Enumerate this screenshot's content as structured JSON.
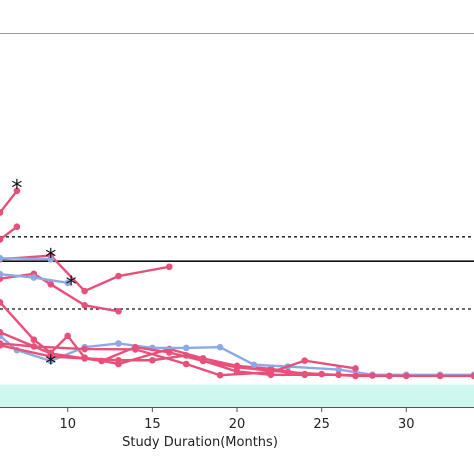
{
  "chart_data": {
    "type": "line",
    "xlabel": "Study Duration(Months)",
    "ylabel": "",
    "title": "",
    "xlim": [
      6,
      34
    ],
    "ylim": [
      0,
      100
    ],
    "x_ticks": [
      10,
      15,
      20,
      25,
      30
    ],
    "x_tick_labels": [
      "10",
      "15",
      "20",
      "25",
      "30"
    ],
    "grid": false,
    "colors": {
      "pink": "#e8507a",
      "blue": "#8ca9e6",
      "band": "#cdf7ef"
    },
    "shaded_band": {
      "y_from": 0,
      "y_to": 6
    },
    "reference_lines": [
      {
        "y": 45.5,
        "style": "dashed"
      },
      {
        "y": 39.0,
        "style": "solid"
      },
      {
        "y": 26.2,
        "style": "dashed"
      }
    ],
    "series": [
      {
        "color": "pink",
        "x": [
          6,
          7
        ],
        "y": [
          52.0,
          57.8
        ]
      },
      {
        "color": "pink",
        "x": [
          6,
          7
        ],
        "y": [
          44.8,
          48.2
        ]
      },
      {
        "color": "pink",
        "x": [
          6,
          9,
          11,
          13,
          16
        ],
        "y": [
          39.5,
          40.5,
          31.0,
          35.0,
          37.5
        ]
      },
      {
        "color": "pink",
        "x": [
          6,
          8,
          9,
          11,
          13
        ],
        "y": [
          34.3,
          35.6,
          32.8,
          27.2,
          25.6
        ]
      },
      {
        "color": "blue",
        "x": [
          6,
          9
        ],
        "y": [
          39.8,
          39.5
        ]
      },
      {
        "color": "blue",
        "x": [
          6,
          8,
          10
        ],
        "y": [
          35.5,
          34.6,
          33.2
        ]
      },
      {
        "color": "pink",
        "x": [
          6,
          8,
          9,
          10,
          11,
          13,
          16,
          18,
          20,
          22,
          24
        ],
        "y": [
          28.0,
          18.0,
          14.5,
          19.0,
          13.2,
          11.5,
          15.5,
          13.0,
          11.0,
          10.2,
          8.8
        ]
      },
      {
        "color": "blue",
        "x": [
          6,
          7,
          9,
          11,
          13,
          15,
          17,
          19,
          21,
          23,
          26,
          28,
          30,
          32,
          34
        ],
        "y": [
          19.0,
          15.2,
          12.3,
          16.0,
          17.0,
          15.8,
          15.8,
          16.0,
          11.3,
          10.8,
          10.0,
          8.6,
          8.6,
          8.6,
          8.6
        ]
      },
      {
        "color": "pink",
        "x": [
          6,
          8,
          11,
          14,
          17,
          19,
          22,
          24,
          27
        ],
        "y": [
          17.0,
          16.2,
          15.5,
          15.4,
          11.5,
          8.5,
          9.3,
          12.4,
          10.3
        ]
      },
      {
        "color": "pink",
        "x": [
          6,
          9,
          12,
          14,
          16,
          18,
          20,
          23,
          25,
          27,
          29
        ],
        "y": [
          20.0,
          14.3,
          12.3,
          16.0,
          14.6,
          12.3,
          10.6,
          9.3,
          8.8,
          8.3,
          8.3
        ]
      },
      {
        "color": "pink",
        "x": [
          6,
          9,
          11,
          13,
          15,
          17,
          20,
          22,
          24,
          26,
          28,
          30,
          32,
          34
        ],
        "y": [
          16.5,
          13.5,
          13.0,
          12.5,
          12.5,
          13.8,
          9.5,
          8.6,
          8.6,
          8.6,
          8.4,
          8.3,
          8.3,
          8.3
        ]
      }
    ],
    "annotations": [
      {
        "text": "*",
        "x": 7.0,
        "y": 59.0
      },
      {
        "text": "*",
        "x": 9.0,
        "y": 40.5
      },
      {
        "text": "*",
        "x": 10.2,
        "y": 33.2
      },
      {
        "text": "*",
        "x": 9.0,
        "y": 12.0
      }
    ]
  }
}
